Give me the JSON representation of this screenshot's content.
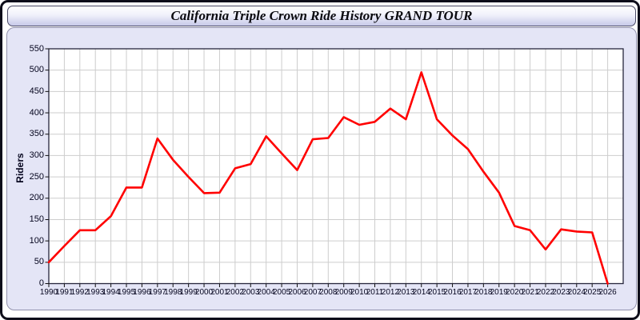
{
  "window": {
    "title": "California Triple Crown Ride History GRAND TOUR"
  },
  "colors": {
    "line": "#ff0000",
    "panel_background": "#e4e5f6",
    "titlebar_gradient_top": "#ffffff",
    "titlebar_gradient_bottom": "#c7c9e9",
    "grid": "#cdcdcd",
    "plot_border": "#26263c",
    "axis_text": "#05051e",
    "plot_background": "#ffffff",
    "outer_frame": "#0e0e1a"
  },
  "chart_data": {
    "type": "line",
    "title": "California Triple Crown Ride History GRAND TOUR",
    "xlabel": "",
    "ylabel": "Riders",
    "xlim": [
      1990,
      2027
    ],
    "ylim": [
      0,
      550
    ],
    "yticks": [
      0,
      50,
      100,
      150,
      200,
      250,
      300,
      350,
      400,
      450,
      500,
      550
    ],
    "grid": true,
    "legend_position": "none",
    "line_color": "#ff0000",
    "x": [
      1990,
      1991,
      1992,
      1993,
      1994,
      1995,
      1996,
      1997,
      1998,
      1999,
      2000,
      2001,
      2002,
      2003,
      2004,
      2005,
      2006,
      2007,
      2008,
      2009,
      2010,
      2011,
      2012,
      2013,
      2014,
      2015,
      2016,
      2017,
      2018,
      2019,
      2020,
      2021,
      2022,
      2023,
      2024,
      2025,
      2026
    ],
    "series": [
      {
        "name": "Riders",
        "values": [
          50,
          88,
          125,
          125,
          158,
          225,
          225,
          340,
          290,
          250,
          212,
          213,
          270,
          280,
          345,
          305,
          266,
          338,
          341,
          390,
          372,
          379,
          410,
          385,
          495,
          385,
          347,
          315,
          262,
          213,
          135,
          125,
          80,
          127,
          122,
          120,
          0
        ]
      }
    ]
  }
}
